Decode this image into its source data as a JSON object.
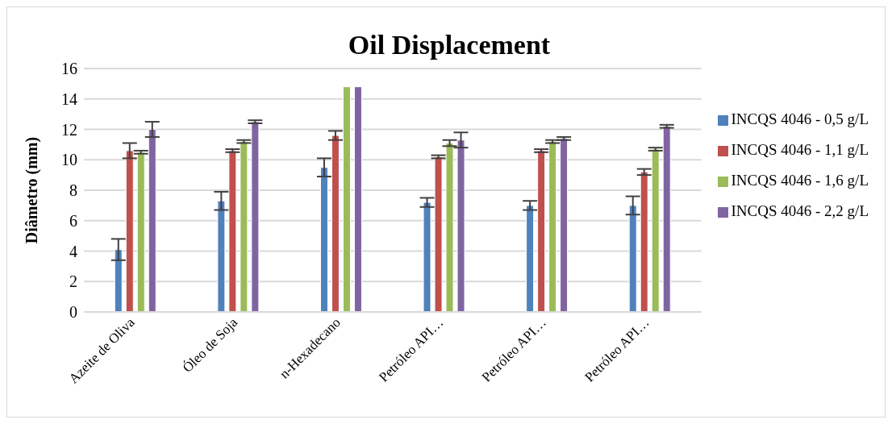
{
  "chart_data": {
    "type": "bar",
    "title": "Oil Displacement",
    "ylabel": "Diâmetro (mm)",
    "categories": [
      "Azeite de Oliva",
      "Óleo de Soja",
      "n-Hexadecano",
      "Petróleo API…",
      "Petróleo API…",
      "Petróleo API…"
    ],
    "series": [
      {
        "name": "INCQS 4046 - 0,5 g/L",
        "color": "#4f81bd",
        "values": [
          4.1,
          7.3,
          9.5,
          7.2,
          7.0,
          7.0
        ],
        "errors": [
          0.7,
          0.6,
          0.6,
          0.3,
          0.3,
          0.6
        ]
      },
      {
        "name": "INCQS 4046 - 1,1 g/L",
        "color": "#c0504d",
        "values": [
          10.6,
          10.6,
          11.6,
          10.2,
          10.6,
          9.2
        ],
        "errors": [
          0.5,
          0.1,
          0.3,
          0.1,
          0.1,
          0.2
        ]
      },
      {
        "name": "INCQS 4046 - 1,6 g/L",
        "color": "#9bbb59",
        "values": [
          10.5,
          11.2,
          14.8,
          11.1,
          11.2,
          10.7
        ],
        "errors": [
          0.1,
          0.1,
          0,
          0.2,
          0.1,
          0.1
        ]
      },
      {
        "name": "INCQS 4046 - 2,2 g/L",
        "color": "#8064a2",
        "values": [
          12.0,
          12.5,
          14.8,
          11.3,
          11.4,
          12.2
        ],
        "errors": [
          0.5,
          0.1,
          0,
          0.5,
          0.1,
          0.1
        ]
      }
    ],
    "ylim": [
      0,
      16
    ],
    "yticks": [
      0,
      2,
      4,
      6,
      8,
      10,
      12,
      14,
      16
    ],
    "grid": "y",
    "legend": "right"
  }
}
